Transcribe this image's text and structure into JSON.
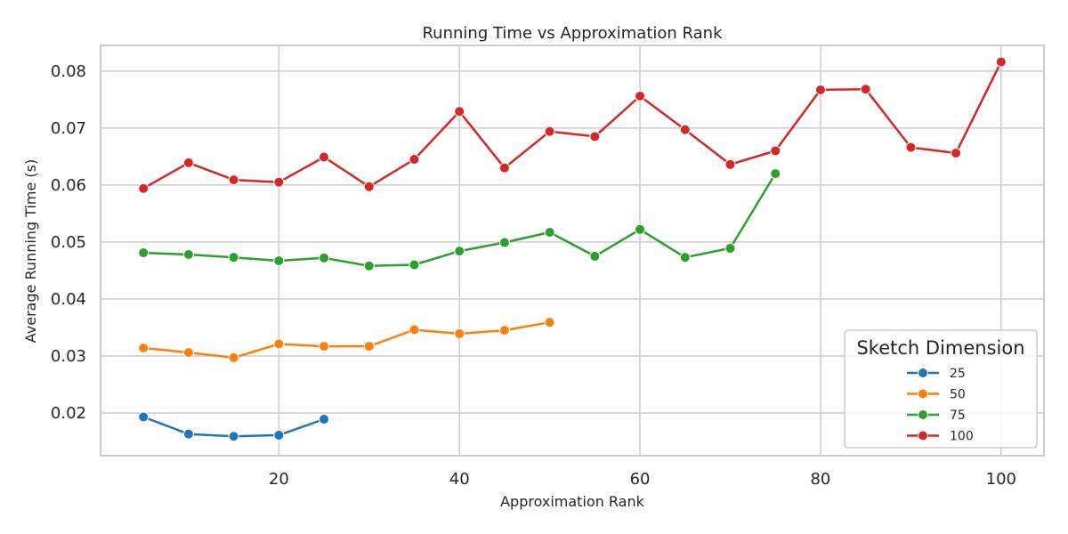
{
  "chart_data": {
    "type": "line",
    "title": "Running Time vs Approximation Rank",
    "xlabel": "Approximation Rank",
    "ylabel": "Average Running Time (s)",
    "xlim": [
      0.25,
      104.75
    ],
    "ylim": [
      0.0125,
      0.0845
    ],
    "xticks": [
      20,
      40,
      60,
      80,
      100
    ],
    "yticks": [
      0.02,
      0.03,
      0.04,
      0.05,
      0.06,
      0.07,
      0.08
    ],
    "xtick_labels": [
      "20",
      "40",
      "60",
      "80",
      "100"
    ],
    "ytick_labels": [
      "0.02",
      "0.03",
      "0.04",
      "0.05",
      "0.06",
      "0.07",
      "0.08"
    ],
    "grid": true,
    "legend": {
      "title": "Sketch Dimension",
      "placement": "lower-right"
    },
    "series": [
      {
        "name": "25",
        "color": "#1f77b4",
        "x": [
          5,
          10,
          15,
          20,
          25
        ],
        "y": [
          0.0193,
          0.0163,
          0.0159,
          0.0161,
          0.0189
        ]
      },
      {
        "name": "50",
        "color": "#ff7f0e",
        "x": [
          5,
          10,
          15,
          20,
          25,
          30,
          35,
          40,
          45,
          50
        ],
        "y": [
          0.0314,
          0.0306,
          0.0297,
          0.0321,
          0.0317,
          0.0317,
          0.0346,
          0.0339,
          0.0345,
          0.0359
        ]
      },
      {
        "name": "75",
        "color": "#2ca02c",
        "x": [
          5,
          10,
          15,
          20,
          25,
          30,
          35,
          40,
          45,
          50,
          55,
          60,
          65,
          70,
          75
        ],
        "y": [
          0.0481,
          0.0478,
          0.0473,
          0.0467,
          0.0472,
          0.0458,
          0.046,
          0.0484,
          0.0499,
          0.0517,
          0.0475,
          0.0522,
          0.0473,
          0.0489,
          0.062
        ]
      },
      {
        "name": "100",
        "color": "#d62728",
        "x": [
          5,
          10,
          15,
          20,
          25,
          30,
          35,
          40,
          45,
          50,
          55,
          60,
          65,
          70,
          75,
          80,
          85,
          90,
          95,
          100
        ],
        "y": [
          0.0594,
          0.0639,
          0.0609,
          0.0605,
          0.0649,
          0.0597,
          0.0645,
          0.0729,
          0.063,
          0.0694,
          0.0685,
          0.0756,
          0.0697,
          0.0636,
          0.066,
          0.0767,
          0.0768,
          0.0666,
          0.0656,
          0.0816
        ]
      }
    ]
  }
}
